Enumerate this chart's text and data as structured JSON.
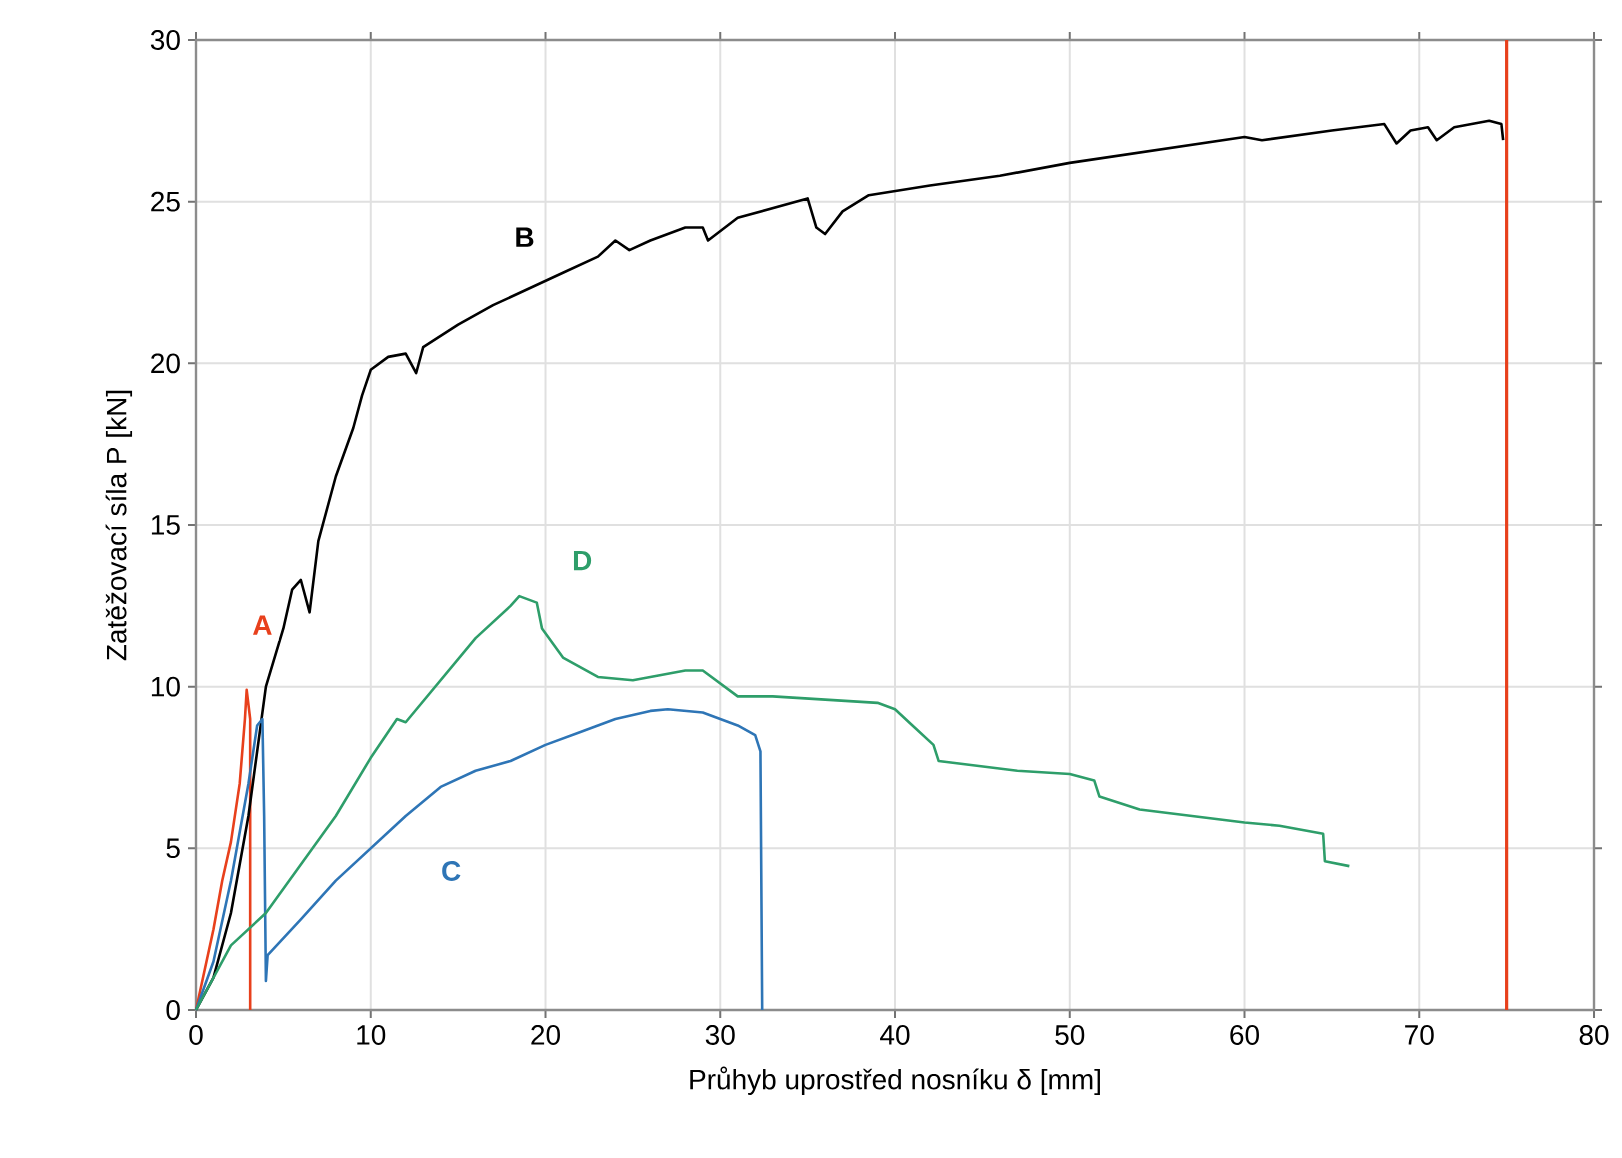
{
  "chart_data": {
    "type": "line",
    "xlabel": "Průhyb uprostřed nosníku δ [mm]",
    "ylabel": "Zatěžovací síla P [kN]",
    "xlim": [
      0,
      80
    ],
    "ylim": [
      0,
      30
    ],
    "xticks": [
      0,
      10,
      20,
      30,
      40,
      50,
      60,
      70,
      80
    ],
    "yticks": [
      0,
      5,
      10,
      15,
      20,
      25,
      30
    ],
    "grid": true,
    "marker": "none",
    "line_style": "solid",
    "series": [
      {
        "name": "A",
        "color": "#e8401c",
        "x": [
          0,
          1,
          1.5,
          2,
          2.5,
          2.8,
          2.9,
          3.1,
          3.1
        ],
        "values": [
          0,
          2.5,
          4,
          5.2,
          7,
          9,
          9.9,
          9,
          0
        ]
      },
      {
        "name": "B",
        "color": "#000000",
        "x": [
          0,
          1,
          2,
          3,
          3.5,
          4,
          5,
          5.5,
          6,
          6.5,
          7,
          8,
          9,
          9.5,
          10,
          11,
          12,
          12.6,
          13,
          15,
          17,
          19,
          21,
          23,
          24,
          24.8,
          26,
          28,
          29,
          29.3,
          31,
          33,
          35,
          35.5,
          36,
          37,
          38.5,
          42,
          46,
          50,
          55,
          60,
          61,
          65,
          68,
          68.7,
          69.5,
          70.5,
          71,
          72,
          74,
          74.7,
          74.8
        ],
        "values": [
          0,
          1,
          3,
          6,
          8,
          10,
          11.8,
          13,
          13.3,
          12.3,
          14.5,
          16.5,
          18,
          19,
          19.8,
          20.2,
          20.3,
          19.7,
          20.5,
          21.2,
          21.8,
          22.3,
          22.8,
          23.3,
          23.8,
          23.5,
          23.8,
          24.2,
          24.2,
          23.8,
          24.5,
          24.8,
          25.1,
          24.2,
          24,
          24.7,
          25.2,
          25.5,
          25.8,
          26.2,
          26.6,
          27,
          26.9,
          27.2,
          27.4,
          26.8,
          27.2,
          27.3,
          26.9,
          27.3,
          27.5,
          27.4,
          26.9
        ]
      },
      {
        "name": "C",
        "color": "#2e75b6",
        "x": [
          0,
          1,
          2,
          3,
          3.5,
          3.8,
          3.9,
          4,
          4.1,
          6,
          8,
          10,
          12,
          14,
          16,
          18,
          20,
          22,
          24,
          26,
          27,
          29,
          30,
          31,
          32,
          32.3,
          32.4
        ],
        "values": [
          0,
          1.5,
          4,
          7,
          8.8,
          9,
          6,
          0.9,
          1.7,
          2.8,
          4,
          5,
          6,
          6.9,
          7.4,
          7.7,
          8.2,
          8.6,
          9,
          9.25,
          9.3,
          9.2,
          9,
          8.8,
          8.5,
          8,
          0
        ]
      },
      {
        "name": "D",
        "color": "#2e9e6a",
        "x": [
          0,
          2,
          4,
          6,
          8,
          10,
          11.5,
          12,
          14,
          16,
          18,
          18.5,
          19.5,
          19.8,
          21,
          23,
          25,
          28,
          29,
          31,
          33,
          36,
          39,
          40,
          41,
          42.2,
          42.5,
          44,
          47,
          50,
          51.4,
          51.7,
          54,
          57,
          60,
          62,
          64.5,
          64.6,
          66
        ],
        "values": [
          0,
          2,
          3,
          4.5,
          6,
          7.8,
          9,
          8.9,
          10.2,
          11.5,
          12.5,
          12.8,
          12.6,
          11.8,
          10.9,
          10.3,
          10.2,
          10.5,
          10.5,
          9.7,
          9.7,
          9.6,
          9.5,
          9.3,
          8.8,
          8.2,
          7.7,
          7.6,
          7.4,
          7.3,
          7.1,
          6.6,
          6.2,
          6,
          5.8,
          5.7,
          5.45,
          4.6,
          4.45
        ]
      }
    ],
    "ref_lines": [
      {
        "axis": "x",
        "value": 75,
        "color": "#e8401c"
      }
    ]
  }
}
